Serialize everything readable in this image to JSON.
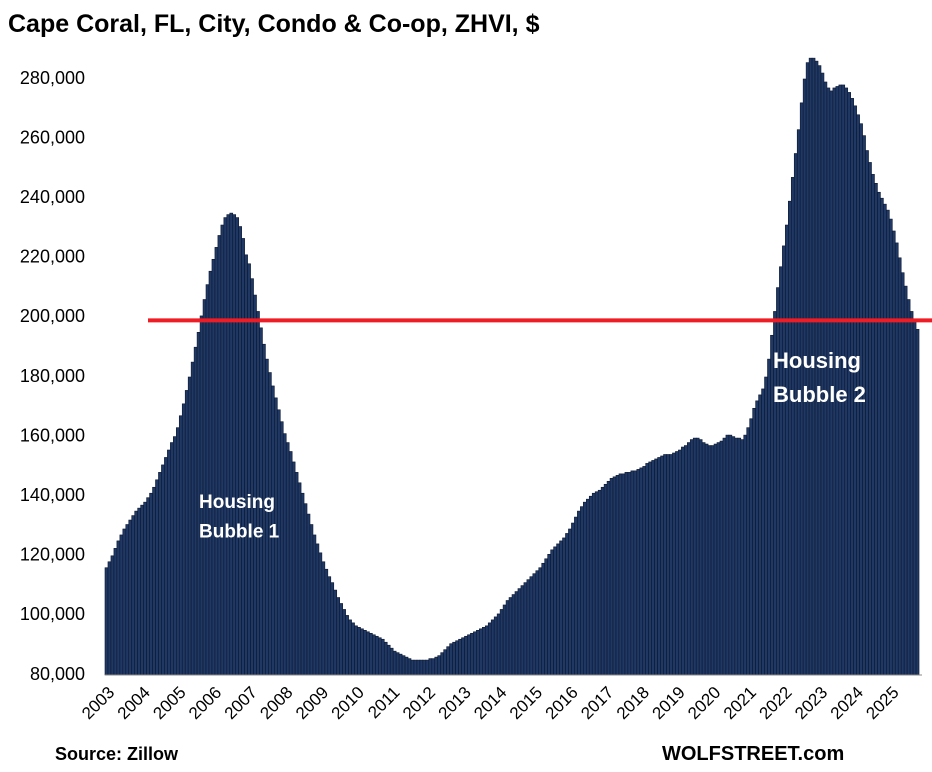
{
  "chart_data": {
    "type": "bar",
    "title": "Cape Coral, FL, City, Condo & Co-op, ZHVI, $",
    "source": "Source: Zillow",
    "credit": "WOLFSTREET.com",
    "annotations": [
      {
        "lines": [
          "Housing",
          "Bubble 1"
        ]
      },
      {
        "lines": [
          "Housing",
          "Bubble 2"
        ]
      }
    ],
    "color": "#203864",
    "edge_color": "#0b1730",
    "reference_line": {
      "value": 199000,
      "color": "#ee1c25"
    },
    "ylim": [
      80000,
      280000
    ],
    "yticks": [
      {
        "value": 80000,
        "label": "80,000"
      },
      {
        "value": 100000,
        "label": "100,000"
      },
      {
        "value": 120000,
        "label": "120,000"
      },
      {
        "value": 140000,
        "label": "140,000"
      },
      {
        "value": 160000,
        "label": "160,000"
      },
      {
        "value": 180000,
        "label": "180,000"
      },
      {
        "value": 200000,
        "label": "200,000"
      },
      {
        "value": 220000,
        "label": "220,000"
      },
      {
        "value": 240000,
        "label": "240,000"
      },
      {
        "value": 260000,
        "label": "260,000"
      },
      {
        "value": 280000,
        "label": "280,000"
      }
    ],
    "categories": [
      "2003",
      null,
      null,
      null,
      null,
      null,
      null,
      null,
      null,
      null,
      null,
      null,
      "2004",
      null,
      null,
      null,
      null,
      null,
      null,
      null,
      null,
      null,
      null,
      null,
      "2005",
      null,
      null,
      null,
      null,
      null,
      null,
      null,
      null,
      null,
      null,
      null,
      "2006",
      null,
      null,
      null,
      null,
      null,
      null,
      null,
      null,
      null,
      null,
      null,
      "2007",
      null,
      null,
      null,
      null,
      null,
      null,
      null,
      null,
      null,
      null,
      null,
      "2008",
      null,
      null,
      null,
      null,
      null,
      null,
      null,
      null,
      null,
      null,
      null,
      "2009",
      null,
      null,
      null,
      null,
      null,
      null,
      null,
      null,
      null,
      null,
      null,
      "2010",
      null,
      null,
      null,
      null,
      null,
      null,
      null,
      null,
      null,
      null,
      null,
      "2011",
      null,
      null,
      null,
      null,
      null,
      null,
      null,
      null,
      null,
      null,
      null,
      "2012",
      null,
      null,
      null,
      null,
      null,
      null,
      null,
      null,
      null,
      null,
      null,
      "2013",
      null,
      null,
      null,
      null,
      null,
      null,
      null,
      null,
      null,
      null,
      null,
      "2014",
      null,
      null,
      null,
      null,
      null,
      null,
      null,
      null,
      null,
      null,
      null,
      "2015",
      null,
      null,
      null,
      null,
      null,
      null,
      null,
      null,
      null,
      null,
      null,
      "2016",
      null,
      null,
      null,
      null,
      null,
      null,
      null,
      null,
      null,
      null,
      null,
      "2017",
      null,
      null,
      null,
      null,
      null,
      null,
      null,
      null,
      null,
      null,
      null,
      "2018",
      null,
      null,
      null,
      null,
      null,
      null,
      null,
      null,
      null,
      null,
      null,
      "2019",
      null,
      null,
      null,
      null,
      null,
      null,
      null,
      null,
      null,
      null,
      null,
      "2020",
      null,
      null,
      null,
      null,
      null,
      null,
      null,
      null,
      null,
      null,
      null,
      "2021",
      null,
      null,
      null,
      null,
      null,
      null,
      null,
      null,
      null,
      null,
      null,
      "2022",
      null,
      null,
      null,
      null,
      null,
      null,
      null,
      null,
      null,
      null,
      null,
      "2023",
      null,
      null,
      null,
      null,
      null,
      null,
      null,
      null,
      null,
      null,
      null,
      "2024",
      null,
      null,
      null,
      null,
      null,
      null,
      null,
      null,
      null,
      null,
      null,
      "2025",
      null,
      null,
      null,
      null,
      null,
      null,
      null,
      null,
      null
    ],
    "values": [
      116000,
      118000,
      120000,
      122500,
      125000,
      127000,
      129000,
      130500,
      132000,
      133500,
      135000,
      136000,
      137000,
      138000,
      139500,
      141000,
      143000,
      145500,
      148000,
      150500,
      153000,
      155500,
      158000,
      160000,
      163000,
      167000,
      171000,
      175500,
      180000,
      185000,
      190000,
      195000,
      200500,
      206000,
      211000,
      215500,
      219500,
      223500,
      227500,
      231000,
      233500,
      234500,
      235000,
      234500,
      233500,
      230500,
      226500,
      221000,
      218000,
      213000,
      207500,
      202000,
      196500,
      191000,
      186000,
      181500,
      177000,
      173000,
      169000,
      165000,
      161000,
      158000,
      155000,
      151500,
      148000,
      144500,
      141000,
      137500,
      134000,
      130500,
      127000,
      124000,
      121000,
      118000,
      115500,
      113000,
      111000,
      108500,
      106000,
      104000,
      102000,
      100000,
      98500,
      97500,
      96500,
      96000,
      95500,
      95000,
      94500,
      94000,
      93500,
      93000,
      92500,
      92000,
      91000,
      90000,
      89000,
      88000,
      87500,
      87000,
      86500,
      86000,
      85500,
      85000,
      85000,
      85000,
      85000,
      85000,
      85000,
      85500,
      85500,
      86000,
      86500,
      87500,
      88500,
      89500,
      90500,
      91000,
      91500,
      92000,
      92500,
      93000,
      93500,
      94000,
      94500,
      95000,
      95500,
      96000,
      96500,
      97500,
      98500,
      99500,
      100500,
      102000,
      103500,
      105000,
      106000,
      107000,
      108000,
      109000,
      110000,
      111000,
      112000,
      113000,
      114000,
      115000,
      116000,
      117500,
      119000,
      120500,
      122000,
      123000,
      124000,
      125000,
      126000,
      127500,
      129000,
      131000,
      133000,
      135000,
      136500,
      138000,
      139000,
      140000,
      141000,
      141500,
      142000,
      143000,
      144000,
      145000,
      146000,
      146500,
      147000,
      147500,
      147500,
      148000,
      148000,
      148500,
      148500,
      149000,
      149500,
      150000,
      151000,
      151500,
      152000,
      152500,
      153000,
      153500,
      154000,
      154000,
      154000,
      154500,
      155000,
      155500,
      156500,
      157000,
      158000,
      159000,
      159500,
      159500,
      159000,
      158000,
      157500,
      157000,
      157000,
      157500,
      158000,
      158500,
      159500,
      160500,
      160500,
      160000,
      159500,
      159500,
      159000,
      160500,
      163000,
      166000,
      169500,
      172000,
      174000,
      176000,
      180000,
      186000,
      194000,
      202000,
      210000,
      217000,
      224000,
      231000,
      239000,
      247000,
      255000,
      263000,
      272000,
      280000,
      285500,
      287000,
      287000,
      286000,
      284500,
      282000,
      279000,
      277000,
      276000,
      277000,
      277500,
      278000,
      278000,
      277000,
      275500,
      273500,
      271000,
      268000,
      265000,
      261000,
      256000,
      252000,
      248000,
      245000,
      242000,
      240000,
      238000,
      236000,
      233000,
      229000,
      225000,
      220000,
      215000,
      210500,
      206000,
      202000,
      199000,
      196000
    ]
  }
}
